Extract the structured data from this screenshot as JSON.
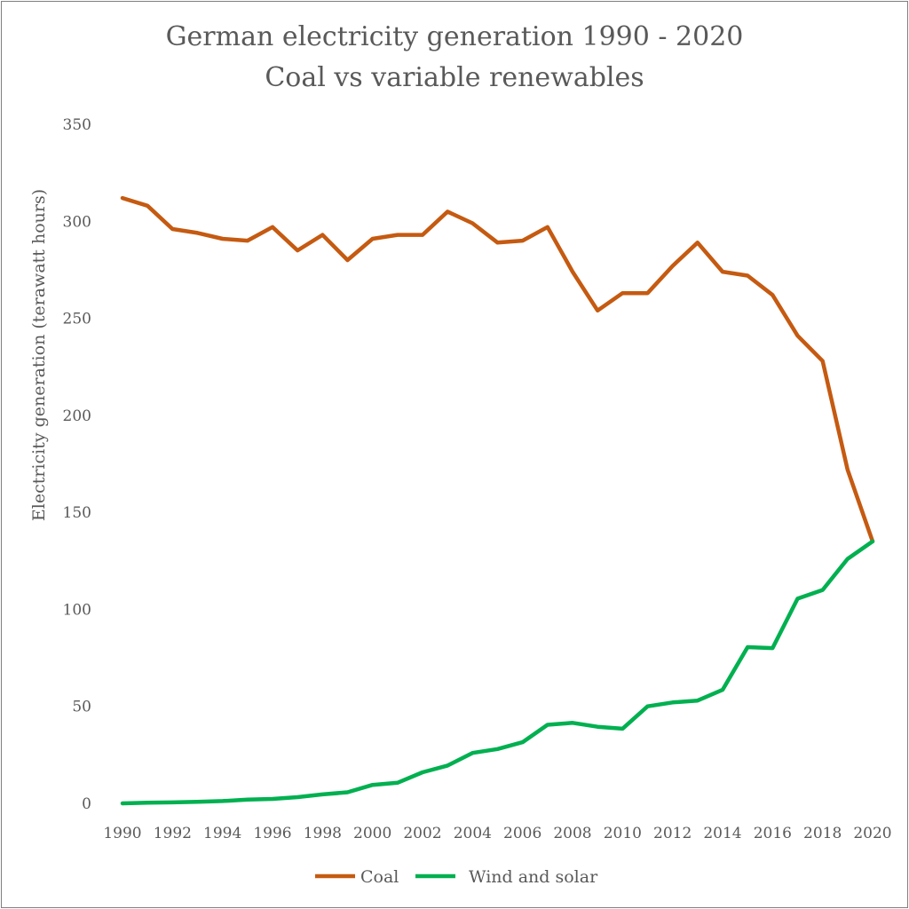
{
  "chart_data": {
    "type": "line",
    "title": "German electricity generation 1990 - 2020",
    "subtitle": "Coal vs variable renewables",
    "xlabel": "",
    "ylabel": "Electricity generation (terawatt hours)",
    "ylim": [
      0,
      350
    ],
    "yticks": [
      0,
      50,
      100,
      150,
      200,
      250,
      300,
      350
    ],
    "xticks": [
      1990,
      1992,
      1994,
      1996,
      1998,
      2000,
      2002,
      2004,
      2006,
      2008,
      2010,
      2012,
      2014,
      2016,
      2018,
      2020
    ],
    "grid": false,
    "legend_position": "bottom",
    "x": [
      1990,
      1991,
      1992,
      1993,
      1994,
      1995,
      1996,
      1997,
      1998,
      1999,
      2000,
      2001,
      2002,
      2003,
      2004,
      2005,
      2006,
      2007,
      2008,
      2009,
      2010,
      2011,
      2012,
      2013,
      2014,
      2015,
      2016,
      2017,
      2018,
      2019,
      2020
    ],
    "series": [
      {
        "name": "Coal",
        "color": "#C55A11",
        "values": [
          312,
          308,
          296,
          294,
          291,
          290,
          297,
          285,
          293,
          280,
          291,
          293,
          293,
          305,
          299,
          289,
          290,
          297,
          274,
          254,
          263,
          263,
          277,
          289,
          274,
          272,
          262,
          241,
          228,
          172,
          135
        ]
      },
      {
        "name": "Wind and solar",
        "color": "#00B050",
        "values": [
          0,
          0.3,
          0.5,
          0.8,
          1.2,
          1.9,
          2.3,
          3.2,
          4.6,
          5.7,
          9.5,
          10.6,
          16,
          19.5,
          26,
          28,
          31.5,
          40.5,
          41.5,
          39.5,
          38.5,
          50,
          52,
          53,
          58.5,
          80.5,
          80,
          105.5,
          110,
          126,
          135
        ]
      }
    ]
  }
}
